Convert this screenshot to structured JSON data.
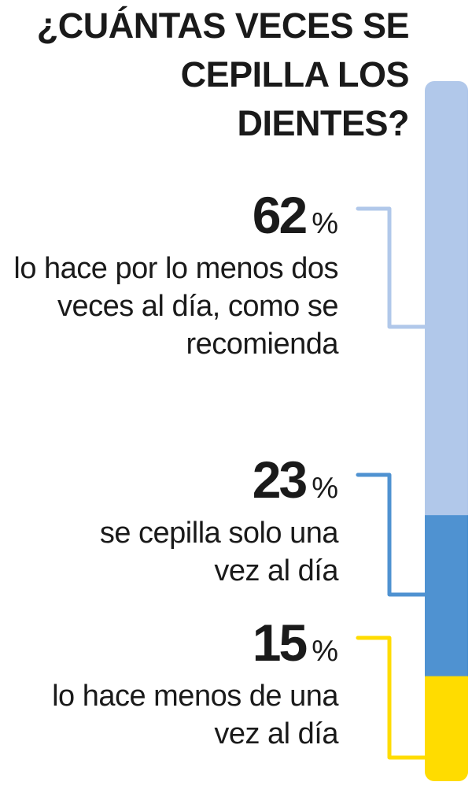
{
  "chart_data": {
    "type": "bar",
    "stacked": true,
    "title": "¿CUÁNTAS VECES SE CEPILLA LOS DIENTES?",
    "series": [
      {
        "value": 62,
        "label": "62",
        "unit": "%",
        "description": "lo hace por lo menos dos veces al día, como se recomienda",
        "color": "#b1c8ea"
      },
      {
        "value": 23,
        "label": "23",
        "unit": "%",
        "description": "se cepilla solo una vez al día",
        "color": "#4f92d1"
      },
      {
        "value": 15,
        "label": "15",
        "unit": "%",
        "description": "lo hace menos de una vez al día",
        "color": "#ffdc00"
      }
    ]
  }
}
